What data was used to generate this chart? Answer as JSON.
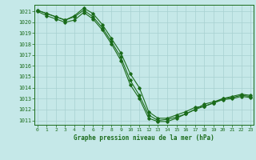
{
  "title": "Graphe pression niveau de la mer (hPa)",
  "bg_color": "#c5e8e8",
  "grid_color": "#a8d0d0",
  "line_color": "#1a6b1a",
  "marker_color": "#1a6b1a",
  "xlim": [
    -0.3,
    23.3
  ],
  "ylim": [
    1010.6,
    1021.6
  ],
  "yticks": [
    1011,
    1012,
    1013,
    1014,
    1015,
    1016,
    1017,
    1018,
    1019,
    1020,
    1021
  ],
  "xticks": [
    0,
    1,
    2,
    3,
    4,
    5,
    6,
    7,
    8,
    9,
    10,
    11,
    12,
    13,
    14,
    15,
    16,
    17,
    18,
    19,
    20,
    21,
    22,
    23
  ],
  "series1_x": [
    0,
    1,
    2,
    3,
    4,
    5,
    6,
    7,
    8,
    9,
    10,
    11,
    12,
    13,
    14,
    15,
    16,
    17,
    18,
    19,
    20,
    21,
    22,
    23
  ],
  "series1_y": [
    1021.1,
    1020.8,
    1020.5,
    1020.2,
    1020.6,
    1021.3,
    1020.8,
    1019.8,
    1018.5,
    1017.2,
    1015.3,
    1014.0,
    1011.8,
    1011.2,
    1011.2,
    1011.5,
    1011.8,
    1012.2,
    1012.3,
    1012.6,
    1013.0,
    1013.2,
    1013.4,
    1013.3
  ],
  "series2_x": [
    0,
    1,
    2,
    3,
    4,
    5,
    6,
    7,
    8,
    9,
    10,
    11,
    12,
    13,
    14,
    15,
    16,
    17,
    18,
    19,
    20,
    21,
    22,
    23
  ],
  "series2_y": [
    1021.1,
    1020.8,
    1020.5,
    1020.2,
    1020.5,
    1021.1,
    1020.5,
    1019.5,
    1018.2,
    1016.8,
    1014.7,
    1013.3,
    1011.5,
    1011.0,
    1011.1,
    1011.3,
    1011.6,
    1012.0,
    1012.5,
    1012.7,
    1013.0,
    1013.1,
    1013.3,
    1013.2
  ],
  "series3_x": [
    0,
    1,
    2,
    3,
    4,
    5,
    6,
    7,
    8,
    9,
    10,
    11,
    12,
    13,
    14,
    15,
    16,
    17,
    18,
    19,
    20,
    21,
    22,
    23
  ],
  "series3_y": [
    1021.0,
    1020.6,
    1020.3,
    1020.0,
    1020.2,
    1020.9,
    1020.3,
    1019.3,
    1018.0,
    1016.5,
    1014.3,
    1013.0,
    1011.2,
    1010.9,
    1010.9,
    1011.2,
    1011.6,
    1012.0,
    1012.3,
    1012.6,
    1012.9,
    1013.0,
    1013.2,
    1013.1
  ]
}
